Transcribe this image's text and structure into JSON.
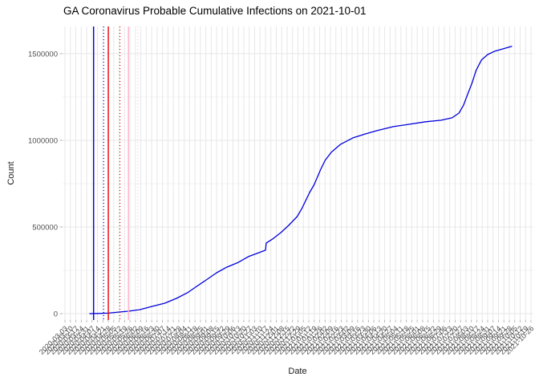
{
  "page": {
    "background": "#FFFFFF"
  },
  "chart_data": {
    "type": "line",
    "title": "GA Coronavirus Probable Cumulative Infections on 2021-10-01",
    "xlabel": "Date",
    "ylabel": "Count",
    "ylim": [
      -37000,
      1657000
    ],
    "y_ticks": [
      0,
      500000,
      1000000,
      1500000
    ],
    "y_minor_ticks": [
      250000,
      750000,
      1250000
    ],
    "grid_major_color": "#E7E7E7",
    "grid_minor_color": "#F3F3F3",
    "axis_text_color": "#4D4D4D",
    "tick_mark_color": "#A8A8A8",
    "legend": "none",
    "x_tick_labels": [
      "2020-03-03",
      "2020-03-10",
      "2020-03-17",
      "2020-03-24",
      "2020-03-31",
      "2020-04-07",
      "2020-04-14",
      "2020-04-21",
      "2020-04-28",
      "2020-05-05",
      "2020-05-12",
      "2020-05-19",
      "2020-05-26",
      "2020-06-02",
      "2020-06-09",
      "2020-06-16",
      "2020-06-23",
      "2020-06-30",
      "2020-07-07",
      "2020-07-14",
      "2020-07-21",
      "2020-07-28",
      "2020-08-04",
      "2020-08-11",
      "2020-08-18",
      "2020-08-25",
      "2020-09-01",
      "2020-09-08",
      "2020-09-15",
      "2020-09-22",
      "2020-09-29",
      "2020-10-06",
      "2020-10-13",
      "2020-10-20",
      "2020-10-27",
      "2020-11-03",
      "2020-11-10",
      "2020-11-17",
      "2020-11-24",
      "2020-12-01",
      "2020-12-08",
      "2020-12-15",
      "2020-12-22",
      "2020-12-29",
      "2021-01-05",
      "2021-01-12",
      "2021-01-19",
      "2021-01-26",
      "2021-02-02",
      "2021-02-09",
      "2021-02-16",
      "2021-02-23",
      "2021-03-02",
      "2021-03-09",
      "2021-03-16",
      "2021-03-23",
      "2021-03-30",
      "2021-04-06",
      "2021-04-13",
      "2021-04-20",
      "2021-04-27",
      "2021-05-04",
      "2021-05-11",
      "2021-05-18",
      "2021-05-25",
      "2021-06-01",
      "2021-06-08",
      "2021-06-15",
      "2021-06-22",
      "2021-06-29",
      "2021-07-06",
      "2021-07-13",
      "2021-07-20",
      "2021-07-27",
      "2021-08-03",
      "2021-08-10",
      "2021-08-17",
      "2021-08-24",
      "2021-08-31",
      "2021-09-07",
      "2021-09-14",
      "2021-09-21",
      "2021-09-28",
      "2021-10-05",
      "2021-10-12",
      "2021-10-19",
      "2021-10-26"
    ],
    "series": [
      {
        "name": "probable-cumulative-infections",
        "color": "#0000DC",
        "points": [
          [
            "2020-04-04",
            0
          ],
          [
            "2020-04-13",
            1000
          ],
          [
            "2020-04-28",
            3000
          ],
          [
            "2020-05-11",
            9000
          ],
          [
            "2020-05-24",
            14000
          ],
          [
            "2020-06-08",
            23000
          ],
          [
            "2020-06-24",
            42000
          ],
          [
            "2020-07-10",
            60000
          ],
          [
            "2020-07-25",
            88000
          ],
          [
            "2020-08-08",
            120000
          ],
          [
            "2020-08-20",
            157000
          ],
          [
            "2020-08-31",
            190000
          ],
          [
            "2020-09-15",
            236000
          ],
          [
            "2020-09-28",
            268000
          ],
          [
            "2020-10-13",
            296000
          ],
          [
            "2020-10-26",
            329000
          ],
          [
            "2020-11-06",
            347000
          ],
          [
            "2020-11-17",
            366000
          ],
          [
            "2020-11-18",
            407000
          ],
          [
            "2020-11-26",
            430000
          ],
          [
            "2020-12-07",
            468000
          ],
          [
            "2020-12-17",
            509000
          ],
          [
            "2020-12-28",
            560000
          ],
          [
            "2021-01-03",
            606000
          ],
          [
            "2021-01-13",
            699000
          ],
          [
            "2021-01-19",
            745000
          ],
          [
            "2021-01-27",
            829000
          ],
          [
            "2021-02-02",
            884000
          ],
          [
            "2021-02-10",
            931000
          ],
          [
            "2021-02-22",
            977000
          ],
          [
            "2021-03-10",
            1014000
          ],
          [
            "2021-03-26",
            1037000
          ],
          [
            "2021-04-10",
            1056000
          ],
          [
            "2021-05-01",
            1079000
          ],
          [
            "2021-05-22",
            1093000
          ],
          [
            "2021-06-12",
            1107000
          ],
          [
            "2021-07-02",
            1116000
          ],
          [
            "2021-07-16",
            1130000
          ],
          [
            "2021-07-25",
            1157000
          ],
          [
            "2021-07-31",
            1204000
          ],
          [
            "2021-08-05",
            1264000
          ],
          [
            "2021-08-11",
            1333000
          ],
          [
            "2021-08-16",
            1403000
          ],
          [
            "2021-08-23",
            1463000
          ],
          [
            "2021-08-31",
            1495000
          ],
          [
            "2021-09-09",
            1514000
          ],
          [
            "2021-09-20",
            1528000
          ],
          [
            "2021-10-01",
            1542000
          ]
        ]
      }
    ],
    "vlines": [
      {
        "date": "2020-04-09",
        "color": "#0000DC",
        "style": "solid"
      },
      {
        "date": "2020-04-22",
        "color": "#0000DC",
        "style": "dotted"
      },
      {
        "date": "2020-04-28",
        "color": "#EC0000",
        "style": "solid"
      },
      {
        "date": "2020-05-13",
        "color": "#EC0000",
        "style": "dotted"
      },
      {
        "date": "2020-05-24",
        "color": "#FFB0C4",
        "style": "solid"
      },
      {
        "date": "2020-06-05",
        "color": "#FFC6D2",
        "style": "dotted"
      }
    ]
  }
}
